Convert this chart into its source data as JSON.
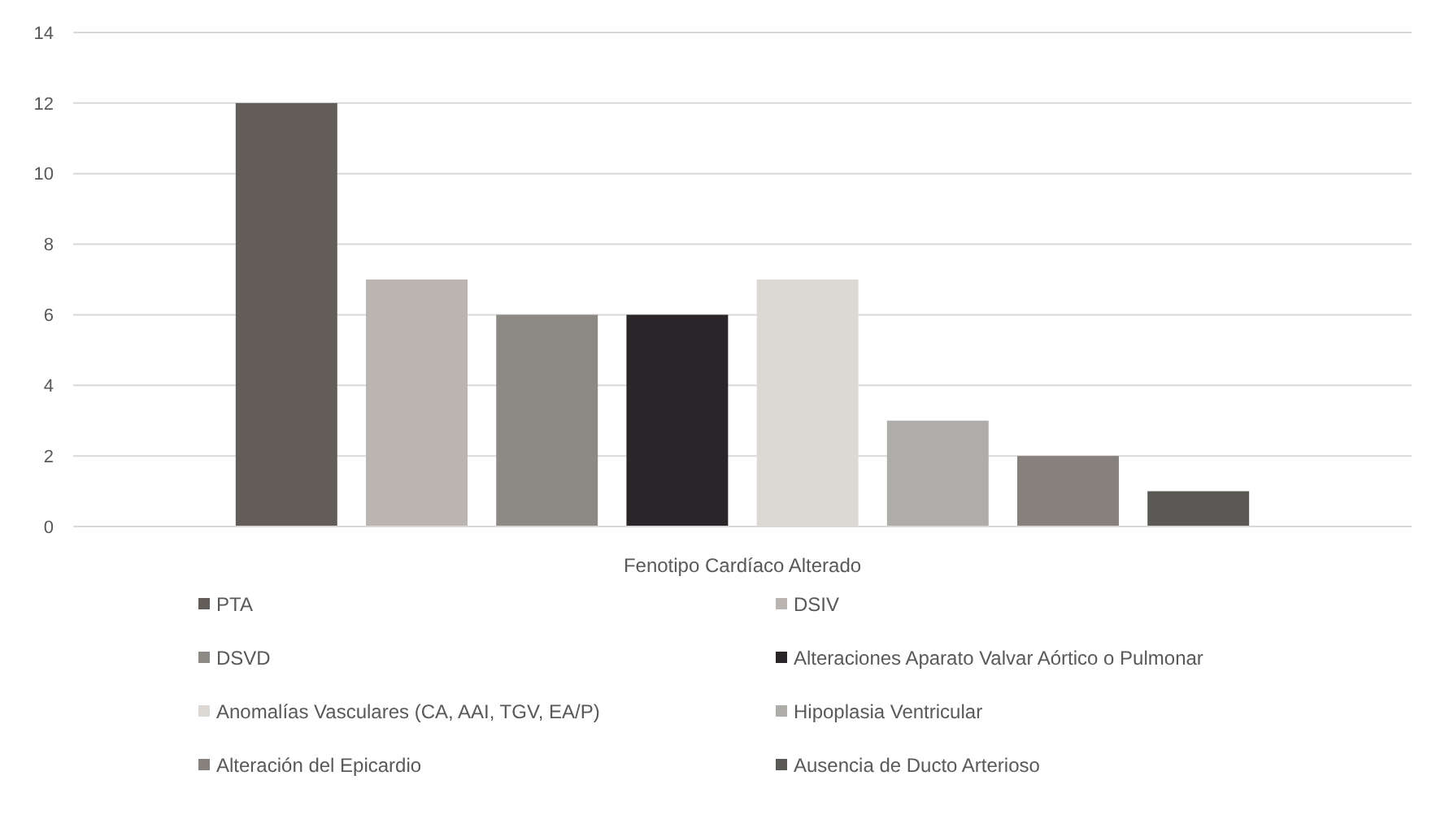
{
  "chart_data": {
    "type": "bar",
    "categories": [
      "Fenotipo Cardíaco Alterado"
    ],
    "ylim": [
      0,
      14
    ],
    "yticks": [
      0,
      2,
      4,
      6,
      8,
      10,
      12,
      14
    ],
    "grid": "y",
    "legend": "bottom",
    "series": [
      {
        "name": "PTA",
        "color": "#625d59",
        "values": [
          12
        ]
      },
      {
        "name": "DSIV",
        "color": "#bab5b1",
        "values": [
          7
        ]
      },
      {
        "name": "DSVD",
        "color": "#8d8a86",
        "values": [
          6
        ]
      },
      {
        "name": "Alteraciones Aparato Valvar Aórtico o Pulmonar",
        "color": "#2a2529",
        "values": [
          6
        ]
      },
      {
        "name": "Anomalías Vasculares (CA, AAI, TGV, EA/P)",
        "color": "#dcd9d5",
        "values": [
          7
        ]
      },
      {
        "name": "Hipoplasia Ventricular",
        "color": "#aeada9",
        "values": [
          3
        ]
      },
      {
        "name": "Alteración del Epicardio",
        "color": "#86817d",
        "values": [
          2
        ]
      },
      {
        "name": "Ausencia de Ducto Arterioso",
        "color": "#5b5955",
        "values": [
          1
        ]
      }
    ]
  }
}
